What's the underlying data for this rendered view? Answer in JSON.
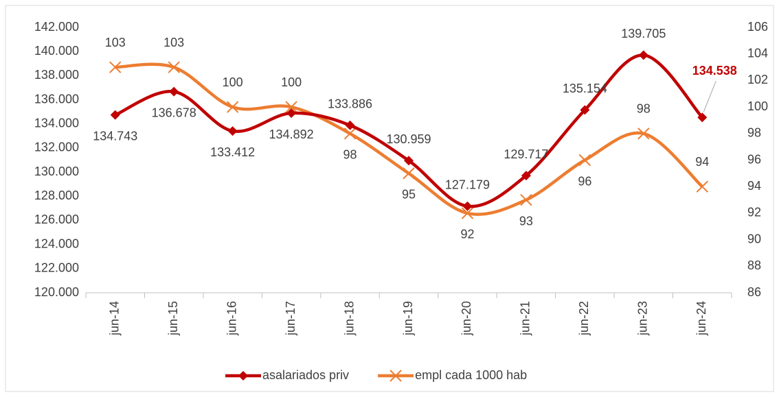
{
  "chart_data": {
    "type": "line",
    "categories": [
      "jun-14",
      "jun-15",
      "jun-16",
      "jun-17",
      "jun-18",
      "jun-19",
      "jun-20",
      "jun-21",
      "jun-22",
      "jun-23",
      "jun-24"
    ],
    "series": [
      {
        "name": "asalariados priv",
        "color": "#c00000",
        "axis": "y",
        "values": [
          134743,
          136678,
          133412,
          134892,
          133886,
          130959,
          127179,
          129717,
          135154,
          139705,
          134538
        ],
        "value_labels": [
          "134.743",
          "136.678",
          "133.412",
          "134.892",
          "133.886",
          "130.959",
          "127.179",
          "129.717",
          "135.154",
          "139.705",
          "134.538"
        ]
      },
      {
        "name": "empl cada 1000 hab",
        "color": "#ed7d31",
        "axis": "y2",
        "values": [
          103,
          103,
          100,
          100,
          98,
          95,
          92,
          93,
          96,
          98,
          94
        ]
      }
    ],
    "ylim": [
      120000,
      142000
    ],
    "yticks": [
      {
        "value": 120000,
        "label": "120.000"
      },
      {
        "value": 122000,
        "label": "122.000"
      },
      {
        "value": 124000,
        "label": "124.000"
      },
      {
        "value": 126000,
        "label": "126.000"
      },
      {
        "value": 128000,
        "label": "128.000"
      },
      {
        "value": 130000,
        "label": "130.000"
      },
      {
        "value": 132000,
        "label": "132.000"
      },
      {
        "value": 134000,
        "label": "134.000"
      },
      {
        "value": 136000,
        "label": "136.000"
      },
      {
        "value": 138000,
        "label": "138.000"
      },
      {
        "value": 140000,
        "label": "140.000"
      },
      {
        "value": 142000,
        "label": "142.000"
      }
    ],
    "y2lim": [
      86,
      106
    ],
    "y2ticks": [
      86,
      88,
      90,
      92,
      94,
      96,
      98,
      100,
      102,
      104,
      106
    ],
    "legend": "bottom"
  }
}
